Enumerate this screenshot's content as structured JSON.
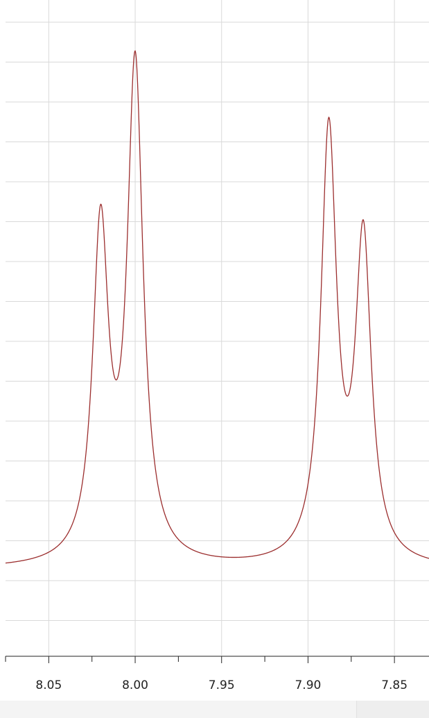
{
  "chart_data": {
    "type": "line",
    "title": "",
    "xlabel": "",
    "ylabel": "",
    "x_axis": {
      "reversed": true,
      "xlim": [
        8.075,
        7.83
      ],
      "major_ticks": [
        8.05,
        8.0,
        7.95,
        7.9,
        7.85
      ],
      "tick_labels": [
        "8.05",
        "8.00",
        "7.95",
        "7.90",
        "7.85"
      ],
      "minor_tick_step": 0.025
    },
    "y_axis": {
      "ylim": [
        0,
        1
      ],
      "tick_labels": false
    },
    "grid": true,
    "line_color": "#9b2d2d",
    "grid_color": "#d9d9d9",
    "baseline": 0.0,
    "peaks": [
      {
        "center": 8.02,
        "height": 0.6
      },
      {
        "center": 8.0,
        "height": 0.9
      },
      {
        "center": 7.888,
        "height": 0.78
      },
      {
        "center": 7.868,
        "height": 0.58
      }
    ],
    "linewidth_hwhm": 0.0055
  }
}
